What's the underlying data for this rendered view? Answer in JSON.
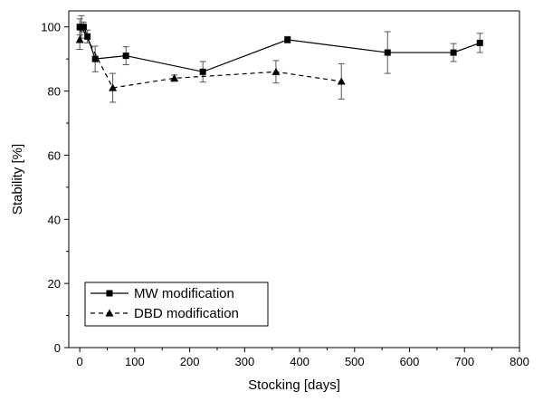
{
  "chart_data": {
    "type": "line",
    "title": "",
    "xlabel": "Stocking [days]",
    "ylabel": "Stability [%]",
    "xlim": [
      -20,
      800
    ],
    "ylim": [
      0,
      105
    ],
    "xticks": [
      0,
      100,
      200,
      300,
      400,
      500,
      600,
      700,
      800
    ],
    "yticks": [
      0,
      20,
      40,
      60,
      80,
      100
    ],
    "grid": false,
    "legend_position": "bottom-left",
    "series": [
      {
        "name": "MW modification",
        "line_style": "solid",
        "marker": "square",
        "color": "#000000",
        "points": [
          {
            "x": 0,
            "y": 100,
            "err": 2.5
          },
          {
            "x": 7,
            "y": 100,
            "err": 1.5
          },
          {
            "x": 14,
            "y": 97,
            "err": 2.0
          },
          {
            "x": 28,
            "y": 90,
            "err": 4.0
          },
          {
            "x": 84,
            "y": 91,
            "err": 2.8
          },
          {
            "x": 224,
            "y": 86,
            "err": 3.2
          },
          {
            "x": 378,
            "y": 96,
            "err": 1.0
          },
          {
            "x": 560,
            "y": 92,
            "err": 6.5
          },
          {
            "x": 680,
            "y": 92,
            "err": 2.8
          },
          {
            "x": 728,
            "y": 95,
            "err": 3.0
          }
        ]
      },
      {
        "name": "DBD modification",
        "line_style": "dashed",
        "marker": "triangle",
        "color": "#000000",
        "points": [
          {
            "x": 0,
            "y": 96,
            "err": 3.0
          },
          {
            "x": 3,
            "y": 100,
            "err": 3.5
          },
          {
            "x": 60,
            "y": 81,
            "err": 4.5
          },
          {
            "x": 172,
            "y": 84,
            "err": 1.0
          },
          {
            "x": 357,
            "y": 86,
            "err": 3.5
          },
          {
            "x": 476,
            "y": 83,
            "err": 5.5
          }
        ]
      }
    ]
  }
}
